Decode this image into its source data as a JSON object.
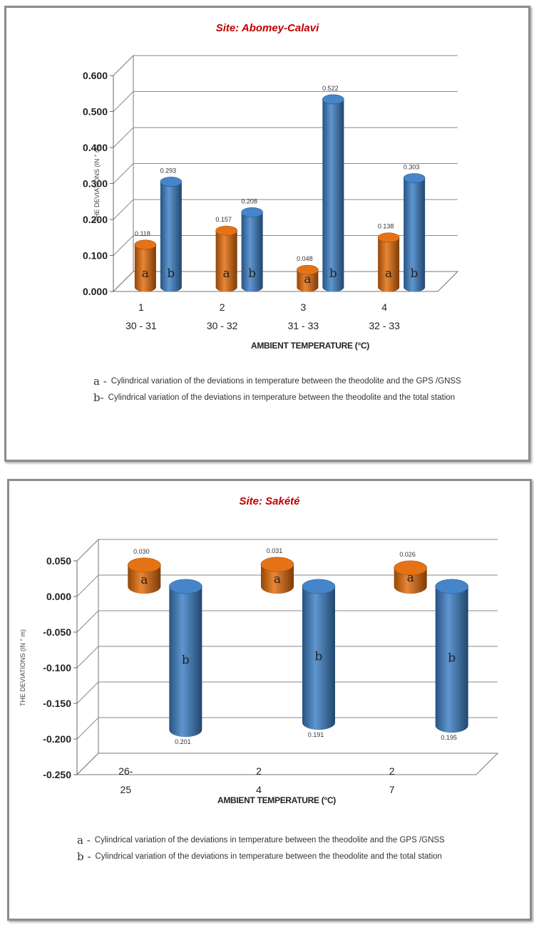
{
  "charts": [
    {
      "title": "Site: Abomey-Calavi",
      "xlabel": "AMBIENT TEMPERATURE (°C)",
      "ylabel": "THE DEVIATIONS (IN ° m)",
      "legend": [
        {
          "key": "a -",
          "text": "Cylindrical variation of the deviations in temperature between the theodolite and the GPS /GNSS"
        },
        {
          "key": "b-",
          "text": "Cylindrical variation of the deviations in temperature between the theodolite and the total station"
        }
      ]
    },
    {
      "title": "Site: Sakété",
      "xlabel": "AMBIENT TEMPERATURE (°C)",
      "ylabel": "THE DEVIATIONS (IN ° m)",
      "legend": [
        {
          "key": "a -",
          "text": "Cylindrical variation of the deviations in temperature between the theodolite and the GPS /GNSS"
        },
        {
          "key": "b -",
          "text": "Cylindrical variation of the deviations in temperature between the theodolite and the total station"
        }
      ]
    }
  ],
  "chart_data": [
    {
      "type": "bar",
      "title": "Site: Abomey-Calavi",
      "xlabel": "AMBIENT TEMPERATURE (°C)",
      "ylabel": "THE DEVIATIONS (IN ° m)",
      "categories": [
        [
          "1",
          "30 - 31"
        ],
        [
          "2",
          "30 - 32"
        ],
        [
          "3",
          "31 - 33"
        ],
        [
          "4",
          "32 - 33"
        ]
      ],
      "series": [
        {
          "name": "a",
          "color": "#e46c0a",
          "values": [
            0.118,
            0.157,
            0.048,
            0.138
          ],
          "value_labels": [
            "0.118",
            "0.157",
            "0.048",
            "0.138"
          ]
        },
        {
          "name": "b",
          "color": "#3c7fc6",
          "values": [
            0.293,
            0.208,
            0.522,
            0.303
          ],
          "value_labels": [
            "0.293",
            "0.208",
            "0.522",
            "0.303"
          ]
        }
      ],
      "yticks": [
        "0.600",
        "0.500",
        "0.400",
        "0.300",
        "0.200",
        "0.100",
        "0.000"
      ],
      "ylim": [
        0,
        0.6
      ],
      "grid": true,
      "style": "3d-cylinder"
    },
    {
      "type": "bar",
      "title": "Site: Sakété",
      "xlabel": "AMBIENT TEMPERATURE (°C)",
      "ylabel": "THE DEVIATIONS (IN ° m)",
      "categories": [
        [
          "26-",
          "25"
        ],
        [
          "2",
          "4"
        ],
        [
          "2",
          "7"
        ]
      ],
      "series": [
        {
          "name": "a",
          "color": "#e46c0a",
          "values": [
            0.03,
            0.031,
            0.026
          ],
          "value_labels": [
            "0.030",
            "0.031",
            "0.026"
          ]
        },
        {
          "name": "b",
          "color": "#3c7fc6",
          "values": [
            -0.201,
            -0.191,
            -0.195
          ],
          "value_labels": [
            "0.201",
            "0.191",
            "0.195"
          ]
        }
      ],
      "yticks": [
        "0.050",
        "0.000",
        "-0.050",
        "-0.100",
        "-0.150",
        "-0.200",
        "-0.250"
      ],
      "ylim": [
        -0.25,
        0.05
      ],
      "grid": true,
      "style": "3d-cylinder"
    }
  ]
}
